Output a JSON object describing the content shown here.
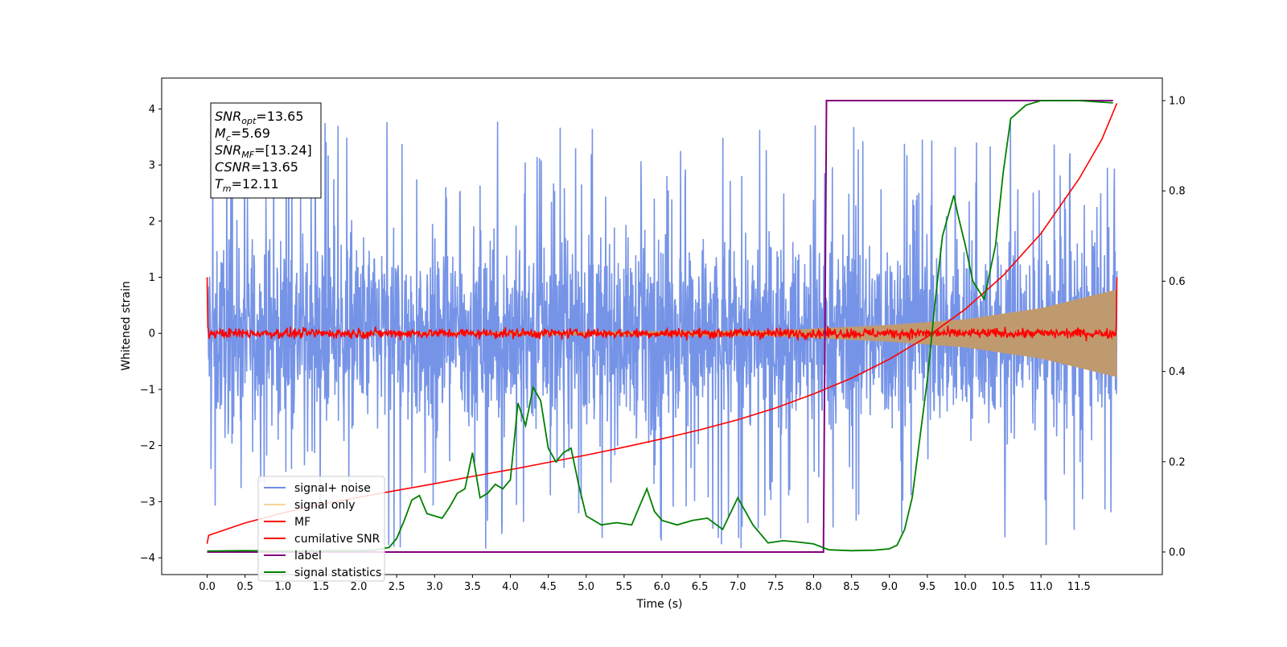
{
  "chart_data": {
    "type": "line",
    "xlabel": "Time (s)",
    "ylabel": "Whitened strain",
    "xlim": [
      -0.6,
      12.6
    ],
    "xticks": [
      0.0,
      0.5,
      1.0,
      1.5,
      2.0,
      2.5,
      3.0,
      3.5,
      4.0,
      4.5,
      5.0,
      5.5,
      6.0,
      6.5,
      7.0,
      7.5,
      8.0,
      8.5,
      9.0,
      9.5,
      10.0,
      10.5,
      11.0,
      11.5
    ],
    "xtick_labels": [
      "0.0",
      "0.5",
      "1.0",
      "1.5",
      "2.0",
      "2.5",
      "3.0",
      "3.5",
      "4.0",
      "4.5",
      "5.0",
      "5.5",
      "6.0",
      "6.5",
      "7.0",
      "7.5",
      "8.0",
      "8.5",
      "9.0",
      "9.5",
      "10.0",
      "10.5",
      "11.0",
      "11.5"
    ],
    "ylim_left": [
      -4.3,
      4.55
    ],
    "yticks_left": [
      -4,
      -3,
      -2,
      -1,
      0,
      1,
      2,
      3,
      4
    ],
    "ytick_labels_left": [
      "−4",
      "−3",
      "−2",
      "−1",
      "0",
      "1",
      "2",
      "3",
      "4"
    ],
    "ylim_right": [
      -0.05,
      1.05
    ],
    "yticks_right": [
      0.0,
      0.2,
      0.4,
      0.6,
      0.8,
      1.0
    ],
    "ytick_labels_right": [
      "0.0",
      "0.2",
      "0.4",
      "0.6",
      "0.8",
      "1.0"
    ],
    "grid": false,
    "legend_position": "lower-left",
    "info_box": {
      "position": "top-left",
      "lines": [
        {
          "sym": "SNR",
          "sub": "opt",
          "rest": "=13.65"
        },
        {
          "sym": "M",
          "sub": "c",
          "rest": "=5.69"
        },
        {
          "sym": "SNR",
          "sub": "MF",
          "rest": "=[13.24]"
        },
        {
          "sym": "CSNR",
          "sub": "",
          "rest": "=13.65"
        },
        {
          "sym": "T",
          "sub": "m",
          "rest": "=12.11"
        }
      ]
    },
    "series": [
      {
        "name": "signal+ noise",
        "axis": "left",
        "color": "#6f8ee6",
        "description_kind": "noise",
        "t_start": 0.0,
        "t_end": 12.0,
        "envelope_typical": 1.3,
        "peak_max": 3.85
      },
      {
        "name": "signal only",
        "axis": "left",
        "color": "#f5c26b",
        "fill_color": "#c09a6f",
        "description_kind": "chirp_envelope",
        "envelope": {
          "t": [
            0.0,
            7.5,
            9.0,
            10.0,
            11.0,
            12.0
          ],
          "amp": [
            0.0,
            0.05,
            0.15,
            0.25,
            0.45,
            0.78
          ]
        }
      },
      {
        "name": "MF",
        "axis": "left",
        "color": "#ff0000",
        "description_kind": "noisy_flat",
        "t_start": 0.0,
        "t_end": 12.0,
        "baseline": 0.0,
        "start_value": 1.0,
        "end_value": 1.0,
        "amplitude": 0.1
      },
      {
        "name": "cumilative SNR",
        "axis": "left",
        "color": "#ff0000",
        "x": [
          0.0,
          0.02,
          0.5,
          1.0,
          1.5,
          2.0,
          2.5,
          3.0,
          3.5,
          4.0,
          4.5,
          5.0,
          5.5,
          6.0,
          6.5,
          7.0,
          7.5,
          8.0,
          8.5,
          9.0,
          9.5,
          10.0,
          10.5,
          11.0,
          11.5,
          11.8,
          12.0
        ],
        "y": [
          -3.75,
          -3.6,
          -3.38,
          -3.2,
          -3.05,
          -2.92,
          -2.8,
          -2.68,
          -2.55,
          -2.43,
          -2.3,
          -2.17,
          -2.03,
          -1.88,
          -1.72,
          -1.54,
          -1.33,
          -1.08,
          -0.8,
          -0.46,
          -0.06,
          0.43,
          1.03,
          1.78,
          2.75,
          3.45,
          4.1
        ]
      },
      {
        "name": "label",
        "axis": "right",
        "color": "#800080",
        "x": [
          0.0,
          8.13,
          8.17,
          11.95
        ],
        "y": [
          0.0,
          0.0,
          1.0,
          1.0
        ]
      },
      {
        "name": "signal statistics",
        "axis": "right",
        "color": "#008000",
        "x": [
          0.0,
          0.5,
          1.0,
          1.5,
          2.0,
          2.2,
          2.4,
          2.5,
          2.6,
          2.7,
          2.8,
          2.9,
          3.0,
          3.1,
          3.2,
          3.3,
          3.4,
          3.5,
          3.6,
          3.7,
          3.8,
          3.9,
          4.0,
          4.1,
          4.2,
          4.3,
          4.4,
          4.5,
          4.6,
          4.7,
          4.8,
          4.9,
          5.0,
          5.2,
          5.4,
          5.6,
          5.8,
          5.9,
          6.0,
          6.2,
          6.4,
          6.6,
          6.8,
          7.0,
          7.2,
          7.4,
          7.6,
          7.8,
          8.0,
          8.2,
          8.5,
          8.8,
          9.0,
          9.1,
          9.2,
          9.3,
          9.4,
          9.5,
          9.6,
          9.7,
          9.8,
          9.85,
          9.9,
          10.0,
          10.1,
          10.25,
          10.4,
          10.5,
          10.6,
          10.8,
          11.0,
          11.5,
          11.95
        ],
        "y": [
          0.002,
          0.003,
          0.002,
          0.003,
          0.003,
          0.004,
          0.01,
          0.03,
          0.07,
          0.115,
          0.125,
          0.085,
          0.08,
          0.075,
          0.1,
          0.13,
          0.14,
          0.22,
          0.12,
          0.13,
          0.15,
          0.14,
          0.16,
          0.33,
          0.28,
          0.365,
          0.335,
          0.23,
          0.2,
          0.22,
          0.23,
          0.15,
          0.08,
          0.06,
          0.065,
          0.06,
          0.14,
          0.09,
          0.07,
          0.06,
          0.07,
          0.075,
          0.05,
          0.12,
          0.06,
          0.02,
          0.025,
          0.022,
          0.018,
          0.005,
          0.003,
          0.004,
          0.007,
          0.015,
          0.05,
          0.12,
          0.25,
          0.38,
          0.55,
          0.7,
          0.76,
          0.79,
          0.75,
          0.68,
          0.6,
          0.56,
          0.68,
          0.84,
          0.96,
          0.99,
          1.0,
          1.0,
          0.995
        ]
      }
    ]
  }
}
